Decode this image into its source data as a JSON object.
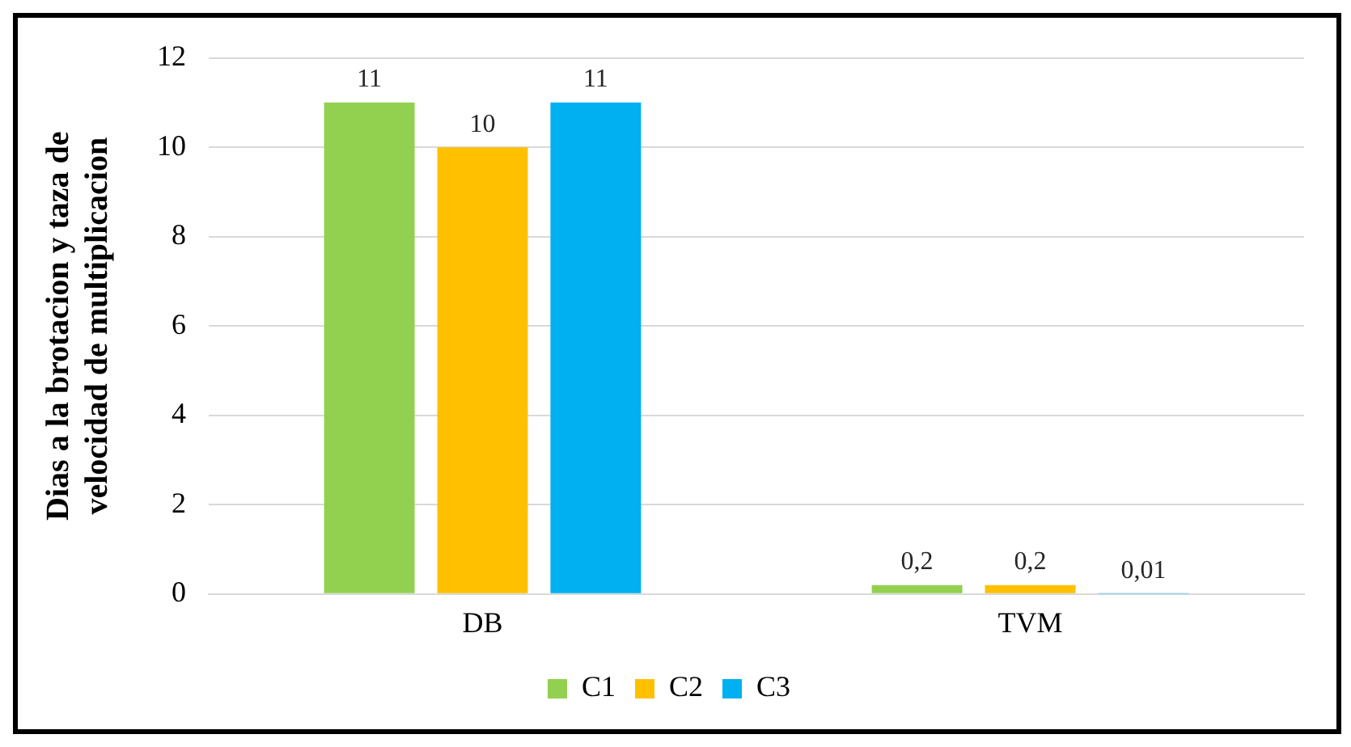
{
  "chart_data": {
    "type": "bar",
    "ylabel": "Dias a la brotacion y taza de velocidad de multiplicacion",
    "categories": [
      "DB",
      "TVM"
    ],
    "series": [
      {
        "name": "C1",
        "color": "#92d050",
        "values": [
          11,
          0.2
        ],
        "value_labels": [
          "11",
          "0,2"
        ]
      },
      {
        "name": "C2",
        "color": "#ffc000",
        "values": [
          10,
          0.2
        ],
        "value_labels": [
          "10",
          "0,2"
        ]
      },
      {
        "name": "C3",
        "color": "#00b0f0",
        "values": [
          11,
          0.01
        ],
        "value_labels": [
          "11",
          "0,01"
        ]
      }
    ],
    "ylim": [
      0,
      12
    ],
    "yticks": [
      0,
      2,
      4,
      6,
      8,
      10,
      12
    ],
    "grid": "y",
    "legend": "bottom"
  }
}
